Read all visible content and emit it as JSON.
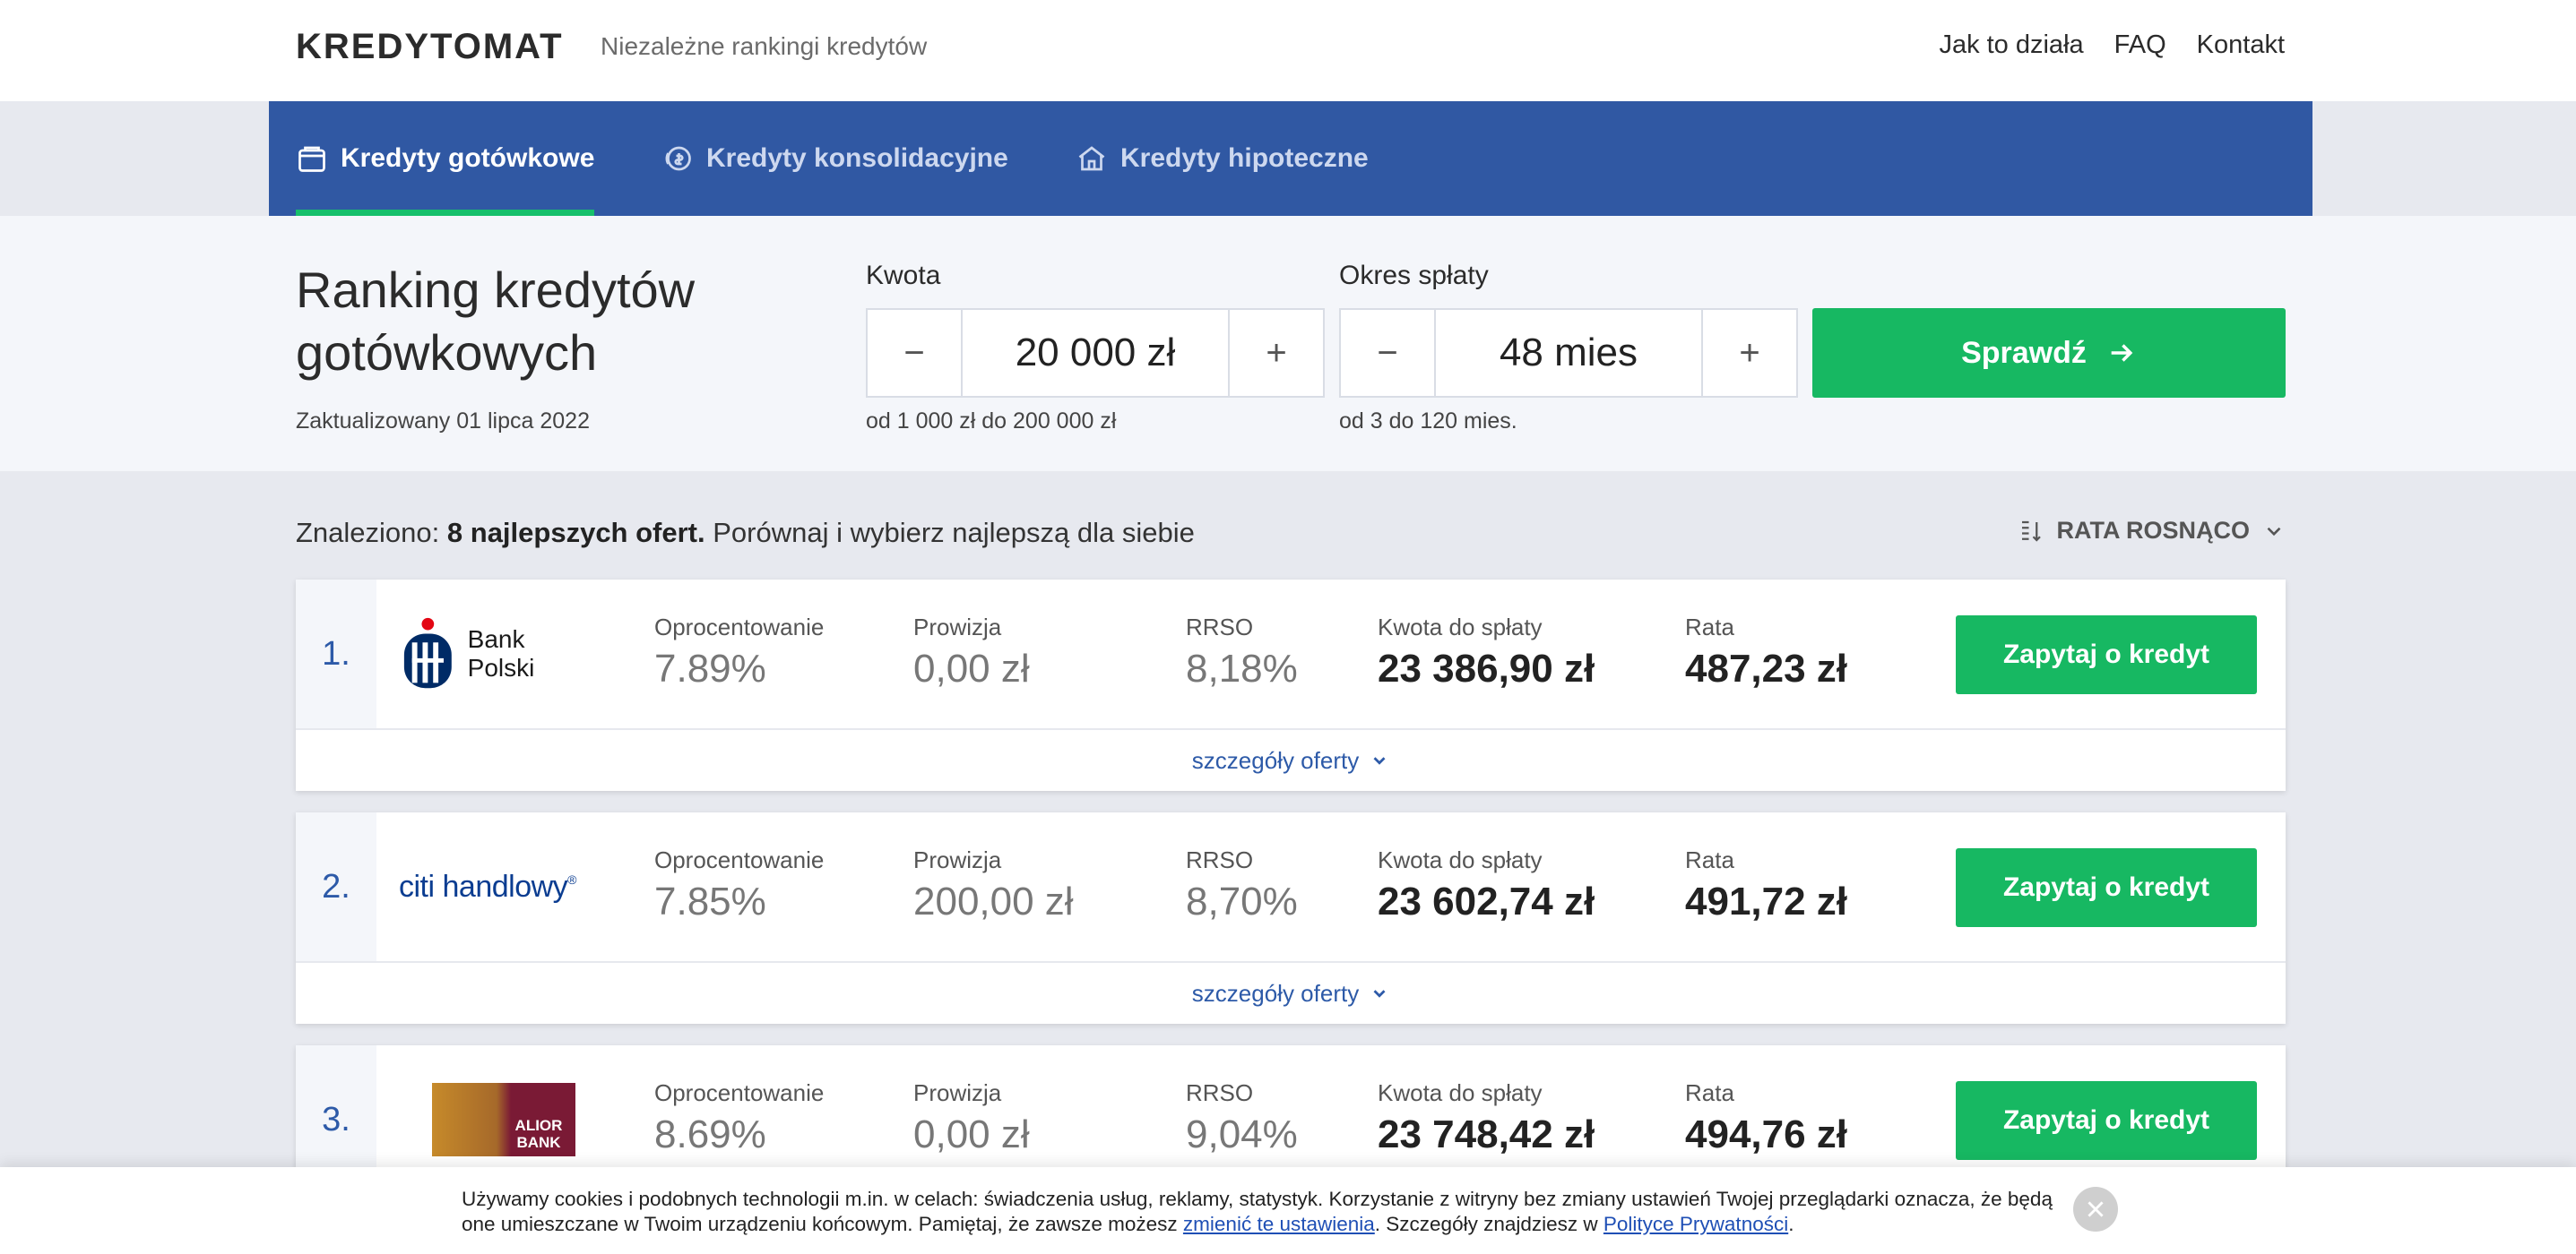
{
  "header": {
    "logo": "KREDYTOMAT",
    "tagline": "Niezależne rankingi kredytów",
    "nav": [
      "Jak to działa",
      "FAQ",
      "Kontakt"
    ]
  },
  "tabs": [
    {
      "label": "Kredyty gotówkowe",
      "icon": "wallet-icon",
      "active": true
    },
    {
      "label": "Kredyty konsolidacyjne",
      "icon": "coins-icon",
      "active": false
    },
    {
      "label": "Kredyty hipoteczne",
      "icon": "house-icon",
      "active": false
    }
  ],
  "search": {
    "title": "Ranking kredytów gotówkowych",
    "updated": "Zaktualizowany 01 lipca 2022",
    "amount": {
      "label": "Kwota",
      "value": "20 000 zł",
      "range": "od 1 000 zł do 200 000 zł",
      "minus": "−",
      "plus": "+"
    },
    "period": {
      "label": "Okres spłaty",
      "value": "48 mies",
      "range": "od 3 do 120 mies.",
      "minus": "−",
      "plus": "+"
    },
    "submit": "Sprawdź"
  },
  "results": {
    "found_prefix": "Znaleziono:",
    "found_bold": "8 najlepszych ofert.",
    "found_suffix": "Porównaj i wybierz najlepszą dla siebie",
    "sort_label": "RATA ROSNĄCO"
  },
  "columns": {
    "rate": "Oprocentowanie",
    "fee": "Prowizja",
    "rrso": "RRSO",
    "total": "Kwota do spłaty",
    "installment": "Rata"
  },
  "offers": [
    {
      "rank": "1.",
      "bank": "Bank Polski",
      "rate": "7.89%",
      "fee": "0,00 zł",
      "rrso": "8,18%",
      "total": "23 386,90 zł",
      "installment": "487,23 zł"
    },
    {
      "rank": "2.",
      "bank": "citi handlowy",
      "rate": "7.85%",
      "fee": "200,00 zł",
      "rrso": "8,70%",
      "total": "23 602,74 zł",
      "installment": "491,72 zł"
    },
    {
      "rank": "3.",
      "bank": "ALIOR BANK",
      "rate": "8.69%",
      "fee": "0,00 zł",
      "rrso": "9,04%",
      "total": "23 748,42 zł",
      "installment": "494,76 zł"
    }
  ],
  "offer_actions": {
    "ask": "Zapytaj o kredyt",
    "details": "szczegóły oferty"
  },
  "cookie": {
    "text1": "Używamy cookies i podobnych technologii m.in. w celach: świadczenia usług, reklamy, statystyk. Korzystanie z witryny bez zmiany ustawień Twojej przeglądarki oznacza, że będą one umieszczane w Twoim urządzeniu końcowym. Pamiętaj, że zawsze możesz ",
    "link1": "zmienić te ustawienia",
    "text2": ". Szczegóły znajdziesz w ",
    "link2": "Polityce Prywatności",
    "text3": "."
  },
  "colors": {
    "brand_blue": "#3058a3",
    "accent_green": "#17b862",
    "link_blue": "#2d5aa8"
  }
}
